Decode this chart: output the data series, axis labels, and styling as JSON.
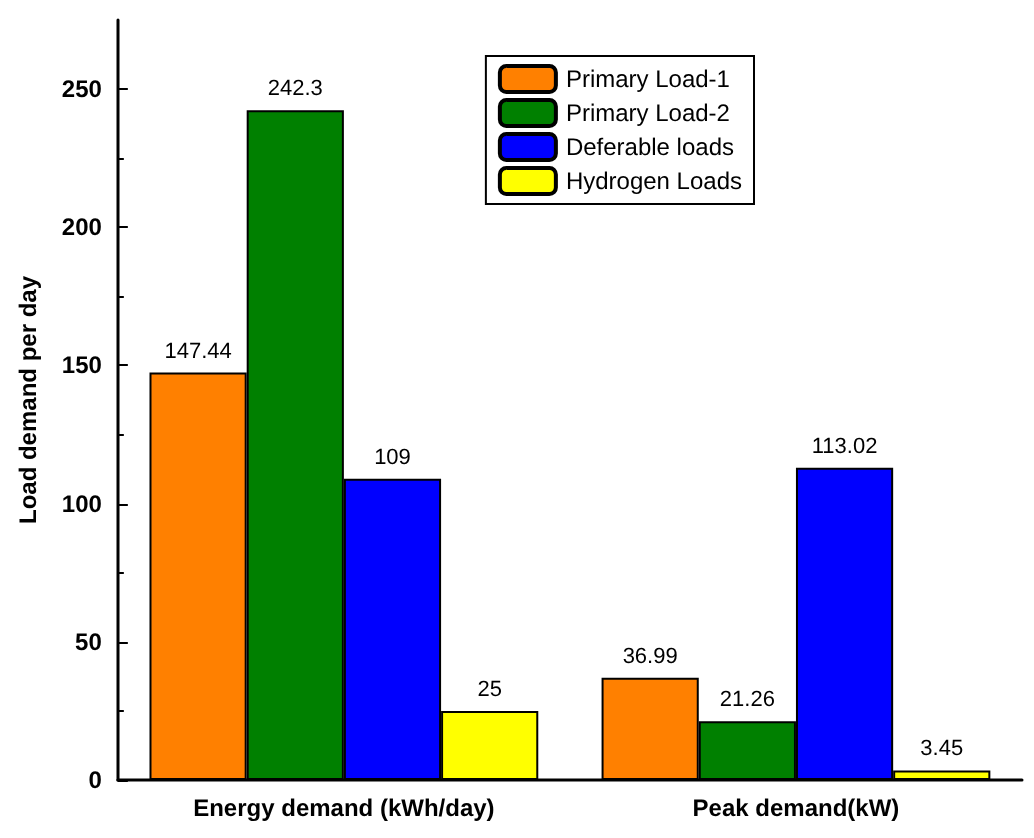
{
  "chart_data": {
    "type": "bar",
    "ylabel": "Load demand per day",
    "categories": [
      "Energy demand (kWh/day)",
      "Peak demand(kW)"
    ],
    "series": [
      {
        "name": "Primary Load-1",
        "color": "#ff8000",
        "values": [
          147.44,
          36.99
        ]
      },
      {
        "name": "Primary Load-2",
        "color": "#008000",
        "values": [
          242.3,
          21.26
        ]
      },
      {
        "name": "Deferable loads",
        "color": "#0000ff",
        "values": [
          109,
          113.02
        ]
      },
      {
        "name": "Hydrogen Loads",
        "color": "#ffff00",
        "values": [
          25,
          3.45
        ]
      }
    ],
    "ylim": [
      0,
      275
    ],
    "yticks": [
      0,
      50,
      100,
      150,
      200,
      250
    ],
    "grid": false,
    "legend": "top right",
    "data_labels": true
  }
}
